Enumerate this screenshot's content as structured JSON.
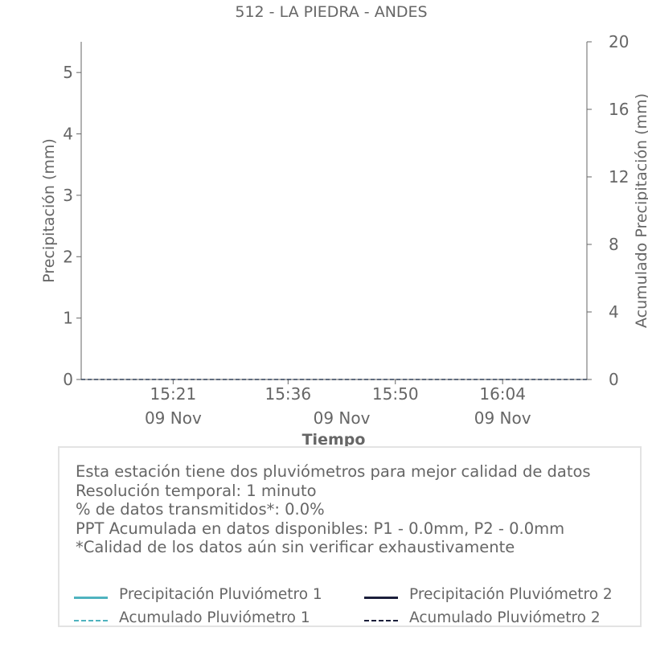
{
  "chart_data": {
    "type": "line",
    "title": "512 - LA PIEDRA - ANDES",
    "xlabel": "Tiempo",
    "ylabel_left": "Precipitación (mm)",
    "ylabel_right": "Acumulado Precipitación (mm)",
    "x_range": [
      "09 Nov 15:09",
      "09 Nov 16:15"
    ],
    "x_ticks": [
      {
        "time": "15:21",
        "date": "09 Nov"
      },
      {
        "time": "15:36",
        "date": ""
      },
      {
        "time": "15:50",
        "date": "09 Nov"
      },
      {
        "time": "16:04",
        "date": ""
      }
    ],
    "x_date_labels": [
      {
        "at": "15:21",
        "label": "09 Nov"
      },
      {
        "at": "15:43",
        "label": "09 Nov"
      },
      {
        "at": "16:04",
        "label": "09 Nov"
      }
    ],
    "ylim_left": [
      0,
      5.5
    ],
    "yticks_left": [
      "0",
      "1",
      "2",
      "3",
      "4",
      "5"
    ],
    "ylim_right": [
      0,
      20
    ],
    "yticks_right": [
      "0",
      "4",
      "8",
      "12",
      "16",
      "20"
    ],
    "grid": false,
    "series": [
      {
        "name": "Precipitación Pluviómetro 1",
        "axis": "left",
        "style": "solid",
        "color": "#4fb3bf",
        "x": [],
        "values": []
      },
      {
        "name": "Precipitación Pluviómetro 2",
        "axis": "left",
        "style": "solid",
        "color": "#1b1f3b",
        "x": [],
        "values": []
      },
      {
        "name": "Acumulado Pluviómetro 1",
        "axis": "right",
        "style": "dashed",
        "color": "#4fb3bf",
        "x": [
          "15:09",
          "16:15"
        ],
        "values": [
          0,
          0
        ]
      },
      {
        "name": "Acumulado Pluviómetro 2",
        "axis": "right",
        "style": "dashed",
        "color": "#1b1f3b",
        "x": [
          "15:09",
          "16:15"
        ],
        "values": [
          0,
          0
        ]
      }
    ]
  },
  "info": {
    "lines": [
      "Esta estación tiene dos pluviómetros para mejor calidad de datos",
      "Resolución temporal: 1 minuto",
      "% de datos transmitidos*: 0.0%",
      "PPT Acumulada en datos disponibles: P1 - 0.0mm, P2 - 0.0mm",
      "*Calidad de los datos aún sin verificar exhaustivamente"
    ]
  },
  "legend": {
    "placement": "bottom",
    "items": [
      {
        "label": "Precipitación Pluviómetro 1",
        "color": "#4fb3bf",
        "style": "solid"
      },
      {
        "label": "Precipitación Pluviómetro 2",
        "color": "#1b1f3b",
        "style": "solid"
      },
      {
        "label": "Acumulado Pluviómetro 1",
        "color": "#4fb3bf",
        "style": "dashed"
      },
      {
        "label": "Acumulado Pluviómetro 2",
        "color": "#1b1f3b",
        "style": "dashed"
      }
    ]
  }
}
